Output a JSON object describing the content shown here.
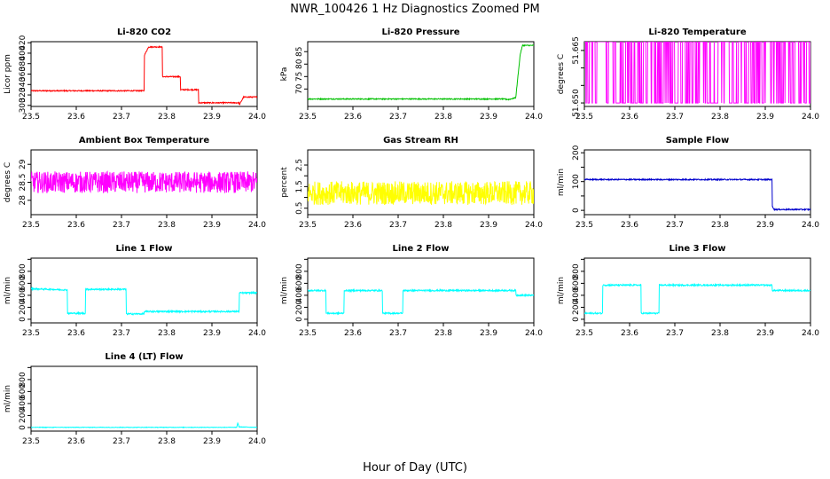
{
  "figure": {
    "title": "NWR_100426  1 Hz Diagnostics Zoomed PM",
    "xlabel": "Hour of Day (UTC)"
  },
  "chart_data": [
    {
      "type": "line",
      "title": "Li-820 CO2",
      "ylabel": "Licor ppm",
      "color": "#ff0000",
      "xlim": [
        23.5,
        24.0
      ],
      "xticks": [
        23.5,
        23.6,
        23.7,
        23.8,
        23.9,
        24.0
      ],
      "ylim": [
        298,
        422
      ],
      "yticks": [
        300,
        320,
        340,
        360,
        380,
        400,
        420
      ],
      "noise": 1,
      "series": [
        {
          "name": "CO2",
          "x": [
            23.5,
            23.75,
            23.75,
            23.76,
            23.76,
            23.79,
            23.79,
            23.83,
            23.83,
            23.87,
            23.87,
            23.96,
            23.96,
            23.97,
            23.97,
            24.0
          ],
          "y": [
            328,
            328,
            395,
            412,
            412,
            412,
            355,
            355,
            330,
            330,
            305,
            305,
            300,
            316,
            316,
            316
          ]
        }
      ]
    },
    {
      "type": "line",
      "title": "Li-820 Pressure",
      "ylabel": "kPa",
      "color": "#00c000",
      "xlim": [
        23.5,
        24.0
      ],
      "xticks": [
        23.5,
        23.6,
        23.7,
        23.8,
        23.9,
        24.0
      ],
      "ylim": [
        63,
        89
      ],
      "yticks": [
        70,
        75,
        80,
        85
      ],
      "noise": 0.2,
      "series": [
        {
          "name": "Pressure",
          "x": [
            23.5,
            23.93,
            23.945,
            23.96,
            23.97,
            23.975,
            24.0
          ],
          "y": [
            66,
            66,
            65.8,
            66.5,
            84,
            87.5,
            87.5
          ]
        }
      ]
    },
    {
      "type": "line",
      "title": "Li-820 Temperature",
      "ylabel": "degrees C",
      "color": "#ff00ff",
      "xlim": [
        23.5,
        24.0
      ],
      "xticks": [
        23.5,
        23.6,
        23.7,
        23.8,
        23.9,
        24.0
      ],
      "ylim": [
        51.649,
        51.6675
      ],
      "yticks": [
        51.65,
        51.655,
        51.66,
        51.665
      ],
      "ytick_labels": [
        "51.650",
        "",
        "",
        "51.665"
      ],
      "series": [
        {
          "name": "Temperature",
          "binary": true,
          "low": 51.65,
          "high": 51.6675,
          "x": [
            23.5,
            24.0
          ]
        }
      ]
    },
    {
      "type": "line",
      "title": "Ambient Box Temperature",
      "ylabel": "degrees C",
      "color": "#ff00ff",
      "xlim": [
        23.5,
        24.0
      ],
      "xticks": [
        23.5,
        23.6,
        23.7,
        23.8,
        23.9,
        24.0
      ],
      "ylim": [
        27.6,
        29.4
      ],
      "yticks": [
        28.0,
        28.5,
        29.0
      ],
      "noise": 0.3,
      "series": [
        {
          "name": "Box Temp",
          "x": [
            23.5,
            24.0
          ],
          "y": [
            28.5,
            28.5
          ]
        }
      ]
    },
    {
      "type": "line",
      "title": "Gas Stream RH",
      "ylabel": "percent",
      "color": "#ffff00",
      "xlim": [
        23.5,
        24.0
      ],
      "xticks": [
        23.5,
        23.6,
        23.7,
        23.8,
        23.9,
        24.0
      ],
      "ylim": [
        0.2,
        3.2
      ],
      "yticks": [
        0.5,
        1.0,
        1.5,
        2.0,
        2.5
      ],
      "ytick_labels": [
        "0.5",
        "",
        "1.5",
        "",
        "2.5"
      ],
      "noise": 0.55,
      "series": [
        {
          "name": "RH",
          "x": [
            23.5,
            24.0
          ],
          "y": [
            1.2,
            1.2
          ]
        }
      ]
    },
    {
      "type": "line",
      "title": "Sample Flow",
      "ylabel": "ml/min",
      "color": "#0000cc",
      "xlim": [
        23.5,
        24.0
      ],
      "xticks": [
        23.5,
        23.6,
        23.7,
        23.8,
        23.9,
        24.0
      ],
      "ylim": [
        -15,
        210
      ],
      "yticks": [
        0,
        50,
        100,
        150,
        200
      ],
      "ytick_labels": [
        "0",
        "",
        "100",
        "",
        "200"
      ],
      "noise": 2,
      "series": [
        {
          "name": "Sample Flow",
          "x": [
            23.5,
            23.915,
            23.915,
            23.92,
            24.0
          ],
          "y": [
            107,
            107,
            15,
            3,
            3
          ]
        }
      ]
    },
    {
      "type": "line",
      "title": "Line 1 Flow",
      "ylabel": "ml/min",
      "color": "#00ffff",
      "xlim": [
        23.5,
        24.0
      ],
      "xticks": [
        23.5,
        23.6,
        23.7,
        23.8,
        23.9,
        24.0
      ],
      "ylim": [
        -60,
        1020
      ],
      "yticks": [
        0,
        200,
        400,
        600,
        800,
        1000
      ],
      "ytick_labels": [
        "0",
        "200",
        "400",
        "600",
        "800",
        ""
      ],
      "noise": 12,
      "series": [
        {
          "name": "Line 1",
          "x": [
            23.5,
            23.5,
            23.58,
            23.58,
            23.62,
            23.62,
            23.71,
            23.71,
            23.75,
            23.75,
            23.96,
            23.96,
            24.0
          ],
          "y": [
            120,
            510,
            490,
            100,
            100,
            500,
            500,
            90,
            90,
            130,
            130,
            440,
            440
          ]
        }
      ]
    },
    {
      "type": "line",
      "title": "Line 2 Flow",
      "ylabel": "ml/min",
      "color": "#00ffff",
      "xlim": [
        23.5,
        24.0
      ],
      "xticks": [
        23.5,
        23.6,
        23.7,
        23.8,
        23.9,
        24.0
      ],
      "ylim": [
        -60,
        1020
      ],
      "yticks": [
        0,
        200,
        400,
        600,
        800,
        1000
      ],
      "ytick_labels": [
        "0",
        "200",
        "400",
        "600",
        "800",
        ""
      ],
      "noise": 12,
      "series": [
        {
          "name": "Line 2",
          "x": [
            23.5,
            23.54,
            23.54,
            23.58,
            23.58,
            23.665,
            23.665,
            23.71,
            23.71,
            23.96,
            23.96,
            24.0
          ],
          "y": [
            480,
            480,
            100,
            100,
            480,
            480,
            100,
            100,
            480,
            480,
            400,
            400
          ]
        }
      ]
    },
    {
      "type": "line",
      "title": "Line 3 Flow",
      "ylabel": "ml/min",
      "color": "#00ffff",
      "xlim": [
        23.5,
        24.0
      ],
      "xticks": [
        23.5,
        23.6,
        23.7,
        23.8,
        23.9,
        24.0
      ],
      "ylim": [
        -60,
        1020
      ],
      "yticks": [
        0,
        200,
        400,
        600,
        800,
        1000
      ],
      "ytick_labels": [
        "0",
        "200",
        "400",
        "600",
        "800",
        ""
      ],
      "noise": 12,
      "series": [
        {
          "name": "Line 3",
          "x": [
            23.5,
            23.5,
            23.54,
            23.54,
            23.625,
            23.625,
            23.665,
            23.665,
            23.915,
            23.915,
            24.0
          ],
          "y": [
            570,
            100,
            100,
            570,
            570,
            100,
            100,
            570,
            570,
            480,
            480
          ]
        }
      ]
    },
    {
      "type": "line",
      "title": "Line 4 (LT) Flow",
      "ylabel": "ml/min",
      "color": "#00ffff",
      "xlim": [
        23.5,
        24.0
      ],
      "xticks": [
        23.5,
        23.6,
        23.7,
        23.8,
        23.9,
        24.0
      ],
      "ylim": [
        -60,
        1020
      ],
      "yticks": [
        0,
        200,
        400,
        600,
        800,
        1000
      ],
      "ytick_labels": [
        "0",
        "200",
        "400",
        "600",
        "800",
        ""
      ],
      "noise": 4,
      "series": [
        {
          "name": "Line 4",
          "x": [
            23.5,
            23.955,
            23.957,
            23.96,
            24.0
          ],
          "y": [
            3,
            3,
            80,
            10,
            3
          ]
        }
      ]
    }
  ]
}
